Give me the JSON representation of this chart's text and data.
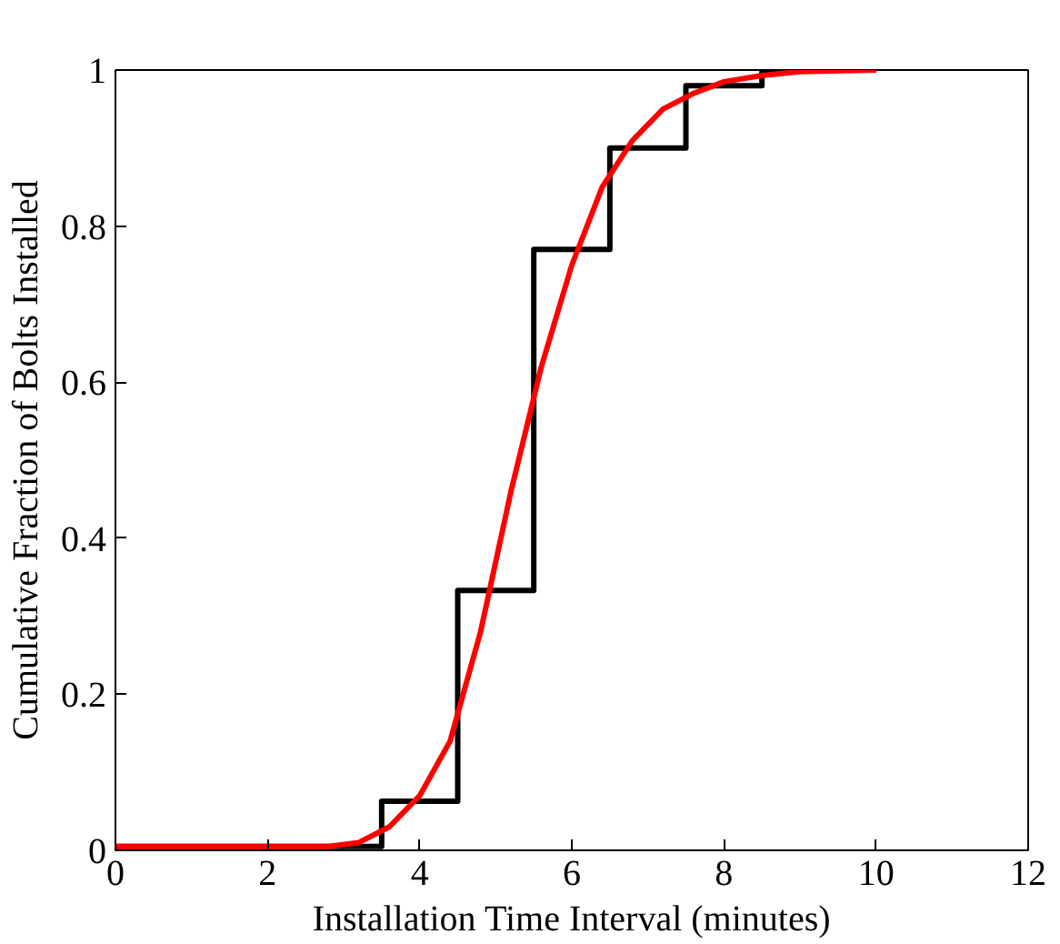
{
  "chart_data": {
    "type": "line",
    "xlabel": "Installation Time Interval (minutes)",
    "ylabel": "Cumulative Fraction of Bolts Installed",
    "xlim": [
      0,
      12
    ],
    "ylim": [
      0,
      1
    ],
    "xticks": [
      0,
      2,
      4,
      6,
      8,
      10,
      12
    ],
    "yticks": [
      0,
      0.2,
      0.4,
      0.6,
      0.8,
      1
    ],
    "grid": false,
    "marker": "none",
    "line_style": "solid",
    "series": [
      {
        "type": "step",
        "color": "#000000",
        "x": [
          0,
          3.5,
          4.5,
          5.5,
          6.5,
          7.5,
          8.5,
          10
        ],
        "values": [
          0.005,
          0.063,
          0.333,
          0.77,
          0.9,
          0.98,
          1,
          1
        ]
      },
      {
        "color": "#ff0000",
        "x": [
          0,
          1,
          2,
          2.8,
          3.2,
          3.6,
          4.0,
          4.4,
          4.8,
          5.2,
          5.6,
          6.0,
          6.4,
          6.8,
          7.2,
          7.6,
          8.0,
          8.5,
          9,
          10
        ],
        "values": [
          0.005,
          0.005,
          0.005,
          0.005,
          0.01,
          0.03,
          0.07,
          0.14,
          0.28,
          0.46,
          0.62,
          0.75,
          0.85,
          0.91,
          0.95,
          0.97,
          0.985,
          0.993,
          0.998,
          1.0
        ]
      }
    ]
  }
}
